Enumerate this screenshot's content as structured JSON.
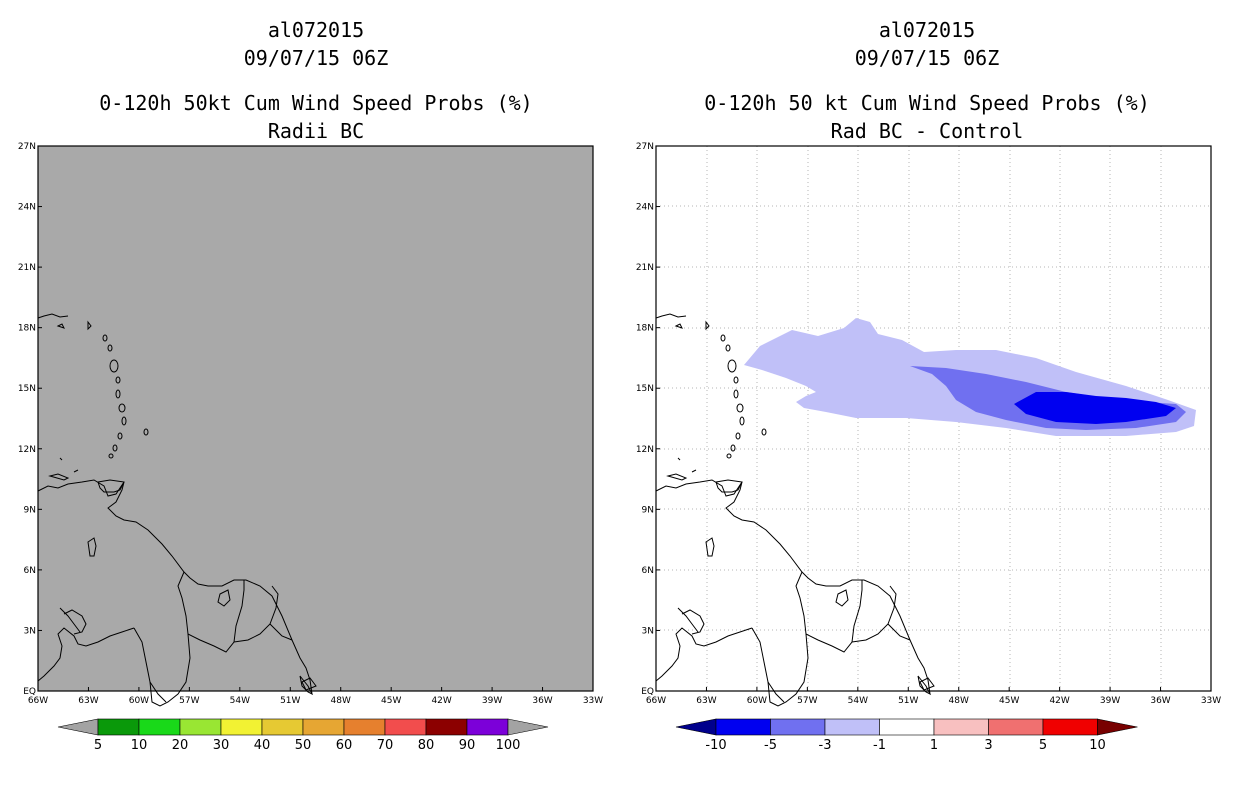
{
  "left": {
    "storm": "al072015",
    "datetime": "09/07/15 06Z",
    "product": "0-120h 50kt Cum Wind Speed Probs (%)",
    "subtitle": "Radii BC",
    "colorbar": {
      "labels": [
        "5",
        "10",
        "20",
        "30",
        "40",
        "50",
        "60",
        "70",
        "80",
        "90",
        "100"
      ],
      "colors": [
        "#0a990a",
        "#19d919",
        "#99e633",
        "#f2f233",
        "#e6c933",
        "#e6a633",
        "#e6802e",
        "#f24d4d",
        "#8c0000",
        "#7c00d9"
      ],
      "end_colors": [
        "#a3a3a3",
        "#a3a3a3"
      ]
    }
  },
  "right": {
    "storm": "al072015",
    "datetime": "09/07/15 06Z",
    "product": "0-120h 50 kt Cum Wind Speed Probs (%)",
    "subtitle": "Rad BC - Control",
    "colorbar": {
      "labels": [
        "-10",
        "-5",
        "-3",
        "-1",
        "1",
        "3",
        "5",
        "10"
      ],
      "colors": [
        "#0000f0",
        "#7070f0",
        "#c0c0f8",
        "#ffffff",
        "#f8c0c0",
        "#f07070",
        "#f00000"
      ],
      "end_colors": [
        "#00008c",
        "#780000"
      ]
    }
  },
  "axes": {
    "lat_labels": [
      "27N",
      "24N",
      "21N",
      "18N",
      "15N",
      "12N",
      "9N",
      "6N",
      "3N",
      "EQ"
    ],
    "lon_labels": [
      "66W",
      "63W",
      "60W",
      "57W",
      "54W",
      "51W",
      "48W",
      "45W",
      "42W",
      "39W",
      "36W",
      "33W"
    ]
  },
  "colors": {
    "land_fill_left": "#a9a9a9",
    "grid": "#b4b4b4",
    "coast": "#000000"
  }
}
